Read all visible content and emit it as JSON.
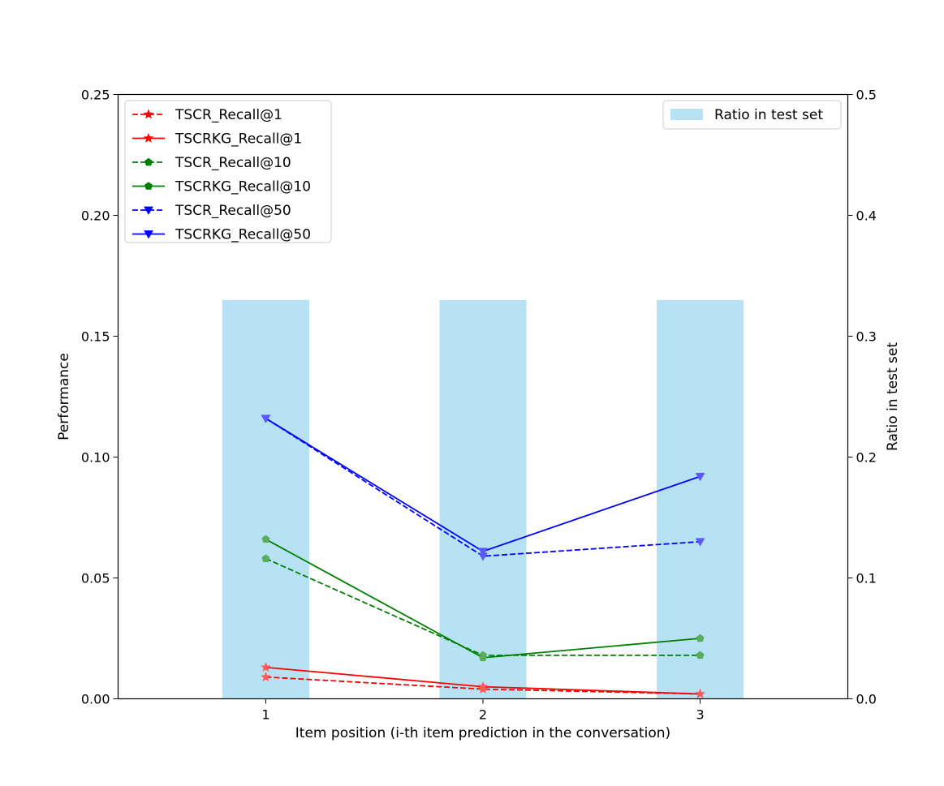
{
  "chart_data": {
    "type": "line",
    "xlabel": "Item position (i-th item prediction in the conversation)",
    "ylabel": "Performance",
    "y2label": "Ratio in test set",
    "categories": [
      "1",
      "2",
      "3"
    ],
    "x": [
      1,
      2,
      3
    ],
    "xlim": [
      0.32,
      3.68
    ],
    "ylim": [
      0,
      0.25
    ],
    "y2lim": [
      0,
      0.5
    ],
    "yticks": [
      "0.00",
      "0.05",
      "0.10",
      "0.15",
      "0.20",
      "0.25"
    ],
    "y2ticks": [
      "0.0",
      "0.1",
      "0.2",
      "0.3",
      "0.4",
      "0.5"
    ],
    "bars": {
      "name": "Ratio in test set",
      "axis": "right",
      "color": "#87ceeb",
      "values": [
        0.33,
        0.33,
        0.33
      ]
    },
    "series": [
      {
        "name": "TSCR_Recall@1",
        "values": [
          0.009,
          0.004,
          0.002
        ],
        "color": "#ff0000",
        "dashed": true,
        "marker": "star"
      },
      {
        "name": "TSCRKG_Recall@1",
        "values": [
          0.013,
          0.005,
          0.002
        ],
        "color": "#ff0000",
        "dashed": false,
        "marker": "star"
      },
      {
        "name": "TSCR_Recall@10",
        "values": [
          0.058,
          0.018,
          0.018
        ],
        "color": "#008000",
        "dashed": true,
        "marker": "pentagon"
      },
      {
        "name": "TSCRKG_Recall@10",
        "values": [
          0.066,
          0.017,
          0.025
        ],
        "color": "#008000",
        "dashed": false,
        "marker": "pentagon"
      },
      {
        "name": "TSCR_Recall@50",
        "values": [
          0.116,
          0.059,
          0.065
        ],
        "color": "#0000ff",
        "dashed": true,
        "marker": "triangle-down"
      },
      {
        "name": "TSCRKG_Recall@50",
        "values": [
          0.116,
          0.061,
          0.092
        ],
        "color": "#0000ff",
        "dashed": false,
        "marker": "triangle-down"
      }
    ],
    "legend_left": "top-left",
    "legend_right": "top-right",
    "grid": false
  }
}
